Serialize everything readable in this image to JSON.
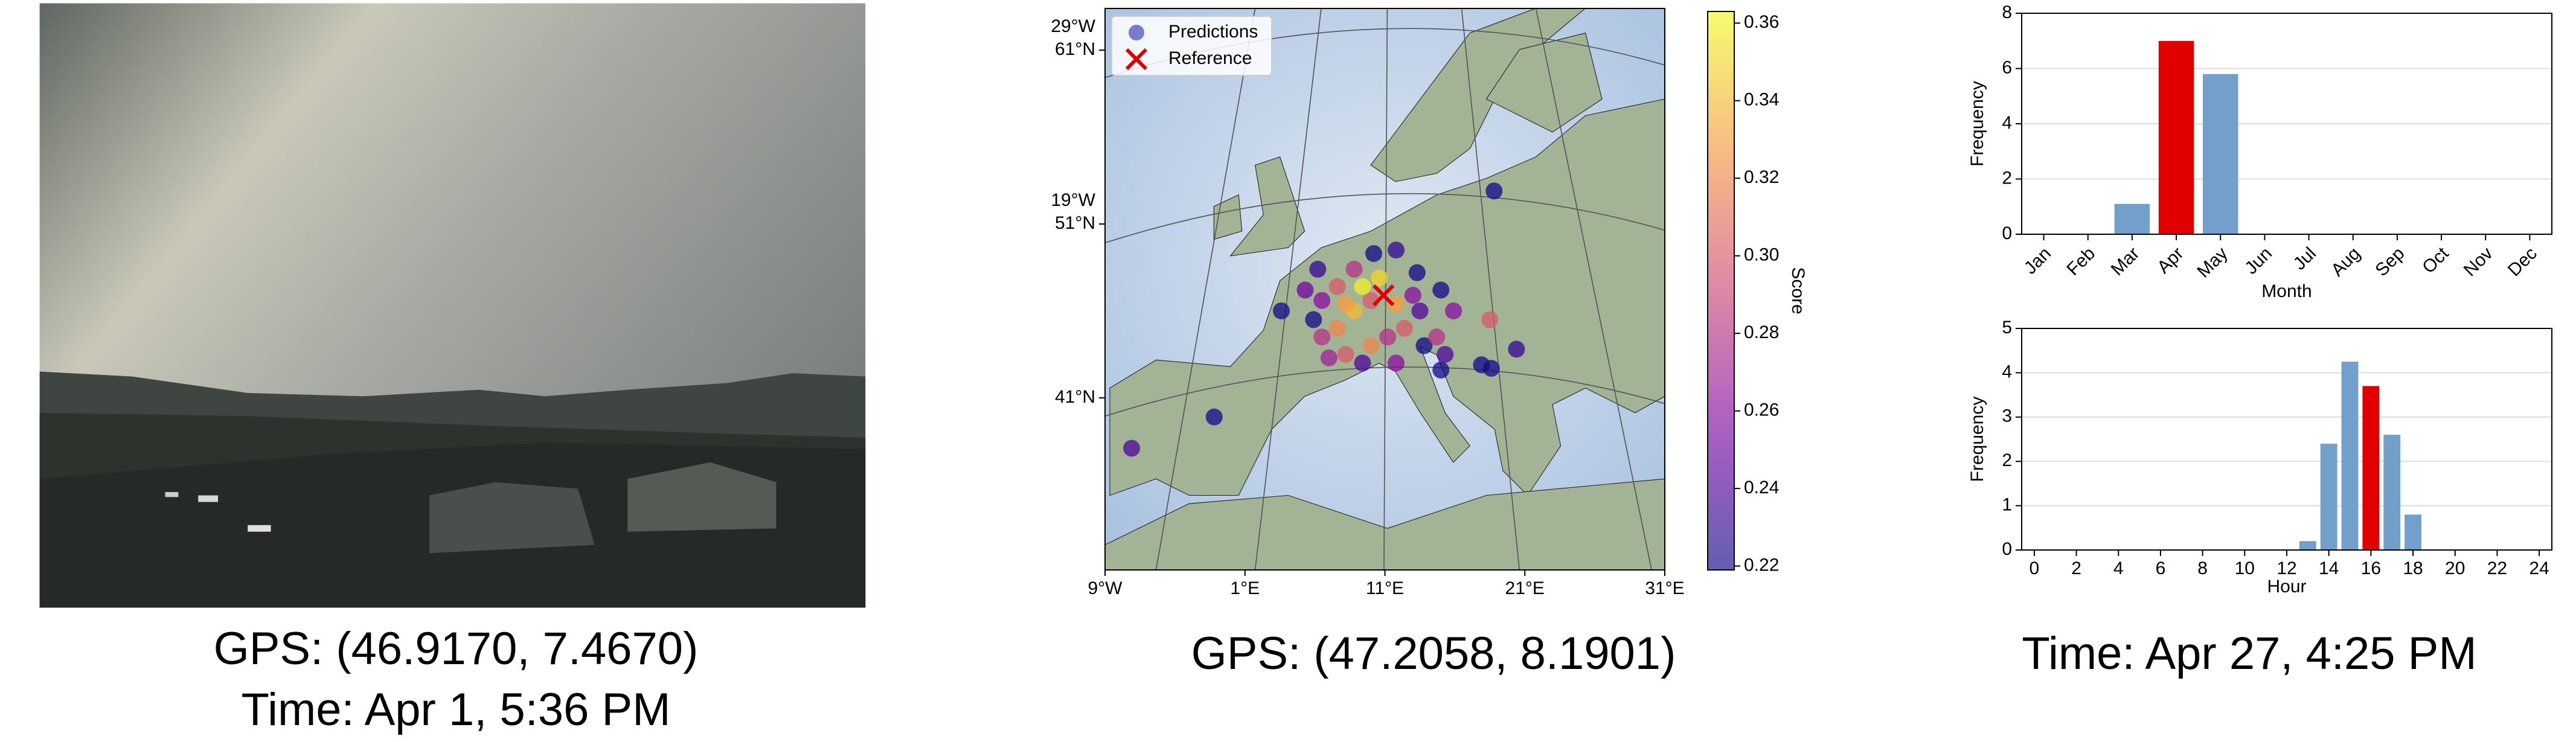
{
  "image_panel": {
    "caption_gps": "GPS: (46.9170, 7.4670)",
    "caption_time": "Time: Apr 1, 5:36 PM"
  },
  "map_panel": {
    "caption": "GPS: (47.2058, 8.1901)"
  },
  "time_panel": {
    "caption": "Time: Apr 27, 4:25 PM"
  },
  "chart_data": [
    {
      "type": "scatter",
      "xlim": [
        -9,
        31
      ],
      "ylim": [
        31.1,
        63.4
      ],
      "xticks": [
        {
          "value": -9,
          "label": "9°W"
        },
        {
          "value": 1,
          "label": "1°E"
        },
        {
          "value": 11,
          "label": "11°E"
        },
        {
          "value": 21,
          "label": "21°E"
        },
        {
          "value": 31,
          "label": "31°E"
        }
      ],
      "yticks": [
        {
          "value": 41,
          "label": "41°N"
        },
        {
          "value": 51,
          "label": "51°N"
        },
        {
          "value": 61,
          "label": "61°N"
        }
      ],
      "left_meridian_labels": [
        {
          "value": 51,
          "label": "19°W"
        },
        {
          "value": 61,
          "label": "29°W"
        }
      ],
      "legend": "upper left",
      "series": [
        {
          "name": "Predictions",
          "color": "#6a6fc4",
          "x": [
            18.8,
            3.6,
            -1.2,
            -7.1,
            18.6,
            20.4,
            17.9,
            18.5,
            15.0,
            13.3,
            11.8,
            10.2,
            8.8,
            7.6,
            6.5,
            5.9,
            6.5,
            7.6,
            8.8,
            10.0,
            11.8,
            13.0,
            13.5,
            12.4,
            11.2,
            10.0,
            8.2,
            7.0,
            9.4,
            11.8,
            13.8,
            14.7,
            15.3,
            15.9,
            10.6,
            9.4,
            8.2,
            5.3,
            6.2,
            15.0
          ],
          "y": [
            52.9,
            46.0,
            39.9,
            38.1,
            42.7,
            43.8,
            42.9,
            45.5,
            47.2,
            48.2,
            49.5,
            49.3,
            48.4,
            47.4,
            46.6,
            45.5,
            44.5,
            45.0,
            46.0,
            46.6,
            46.4,
            46.9,
            46.0,
            45.0,
            44.5,
            44.0,
            43.5,
            43.3,
            43.0,
            43.0,
            44.0,
            44.5,
            43.5,
            46.0,
            47.9,
            47.4,
            46.4,
            47.2,
            48.4,
            42.6
          ],
          "values": [
            0.22,
            0.22,
            0.22,
            0.24,
            0.22,
            0.23,
            0.22,
            0.3,
            0.22,
            0.22,
            0.23,
            0.22,
            0.28,
            0.3,
            0.26,
            0.22,
            0.28,
            0.32,
            0.34,
            0.3,
            0.33,
            0.26,
            0.24,
            0.3,
            0.28,
            0.32,
            0.3,
            0.27,
            0.24,
            0.26,
            0.22,
            0.28,
            0.24,
            0.26,
            0.35,
            0.36,
            0.33,
            0.25,
            0.23,
            0.22
          ]
        },
        {
          "name": "Reference",
          "color": "#dd0000",
          "x": [
            10.9
          ],
          "y": [
            46.9
          ]
        }
      ],
      "colorbar": {
        "label": "Score",
        "colormap": "plasma",
        "lim": [
          0.219,
          0.363
        ],
        "ticks": [
          0.22,
          0.24,
          0.26,
          0.28,
          {
            "value": 0.3,
            "label": "0.30"
          },
          0.32,
          0.34,
          0.36
        ]
      }
    },
    {
      "type": "bar",
      "xlabel": "Month",
      "ylabel": "Frequency",
      "categories": [
        "Jan",
        "Feb",
        "Mar",
        "Apr",
        "May",
        "Jun",
        "Jul",
        "Aug",
        "Sep",
        "Oct",
        "Nov",
        "Dec"
      ],
      "values": [
        0,
        0,
        1.1,
        7.0,
        5.8,
        0,
        0,
        0,
        0,
        0,
        0,
        0
      ],
      "colors": [
        "#739fcb",
        "#739fcb",
        "#739fcb",
        "#e00000",
        "#739fcb",
        "#739fcb",
        "#739fcb",
        "#739fcb",
        "#739fcb",
        "#739fcb",
        "#739fcb",
        "#739fcb"
      ],
      "ylim": [
        0,
        8
      ],
      "yticks": [
        0,
        2,
        4,
        6,
        8
      ],
      "grid": true
    },
    {
      "type": "bar",
      "xlabel": "Hour",
      "ylabel": "Frequency",
      "x": [
        0,
        1,
        2,
        3,
        4,
        5,
        6,
        7,
        8,
        9,
        10,
        11,
        12,
        13,
        14,
        15,
        16,
        17,
        18,
        19,
        20,
        21,
        22,
        23
      ],
      "values": [
        0,
        0,
        0,
        0,
        0,
        0,
        0,
        0,
        0,
        0,
        0,
        0,
        0,
        0.2,
        2.4,
        4.25,
        3.7,
        2.6,
        0.8,
        0,
        0,
        0,
        0,
        0
      ],
      "colors": [
        "#739fcb",
        "#739fcb",
        "#739fcb",
        "#739fcb",
        "#739fcb",
        "#739fcb",
        "#739fcb",
        "#739fcb",
        "#739fcb",
        "#739fcb",
        "#739fcb",
        "#739fcb",
        "#739fcb",
        "#739fcb",
        "#739fcb",
        "#739fcb",
        "#e00000",
        "#739fcb",
        "#739fcb",
        "#739fcb",
        "#739fcb",
        "#739fcb",
        "#739fcb",
        "#739fcb"
      ],
      "xlim": [
        -0.6,
        24.6
      ],
      "xticks": [
        0,
        2,
        4,
        6,
        8,
        10,
        12,
        14,
        16,
        18,
        20,
        22,
        24
      ],
      "ylim": [
        0,
        5
      ],
      "yticks": [
        0,
        1,
        2,
        3,
        4,
        5
      ],
      "grid": true
    }
  ]
}
